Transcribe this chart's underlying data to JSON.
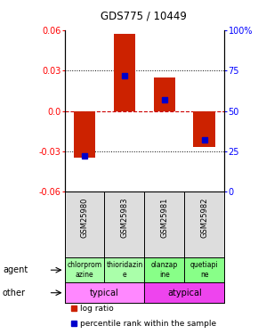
{
  "title": "GDS775 / 10449",
  "samples": [
    "GSM25980",
    "GSM25983",
    "GSM25981",
    "GSM25982"
  ],
  "log_ratios": [
    -0.035,
    0.057,
    0.025,
    -0.027
  ],
  "percentile_ranks": [
    0.22,
    0.72,
    0.57,
    0.32
  ],
  "ylim": [
    -0.06,
    0.06
  ],
  "yticks_left": [
    -0.06,
    -0.03,
    0.0,
    0.03,
    0.06
  ],
  "yticks_right": [
    0,
    25,
    50,
    75,
    100
  ],
  "dotted_yticks": [
    -0.03,
    0.03
  ],
  "bar_color": "#cc2200",
  "percentile_color": "#0000cc",
  "zero_line_color": "#cc0000",
  "agent_labels": [
    "chlorprom\nazine",
    "thioridazin\ne",
    "olanzap\nine",
    "quetiapi\nne"
  ],
  "agent_colors_left": "#aaffaa",
  "agent_colors_right": "#88ff88",
  "other_labels": [
    "typical",
    "atypical"
  ],
  "other_color_left": "#ff88ff",
  "other_color_right": "#ee44ee",
  "legend_bar": "log ratio",
  "legend_pct": "percentile rank within the sample"
}
